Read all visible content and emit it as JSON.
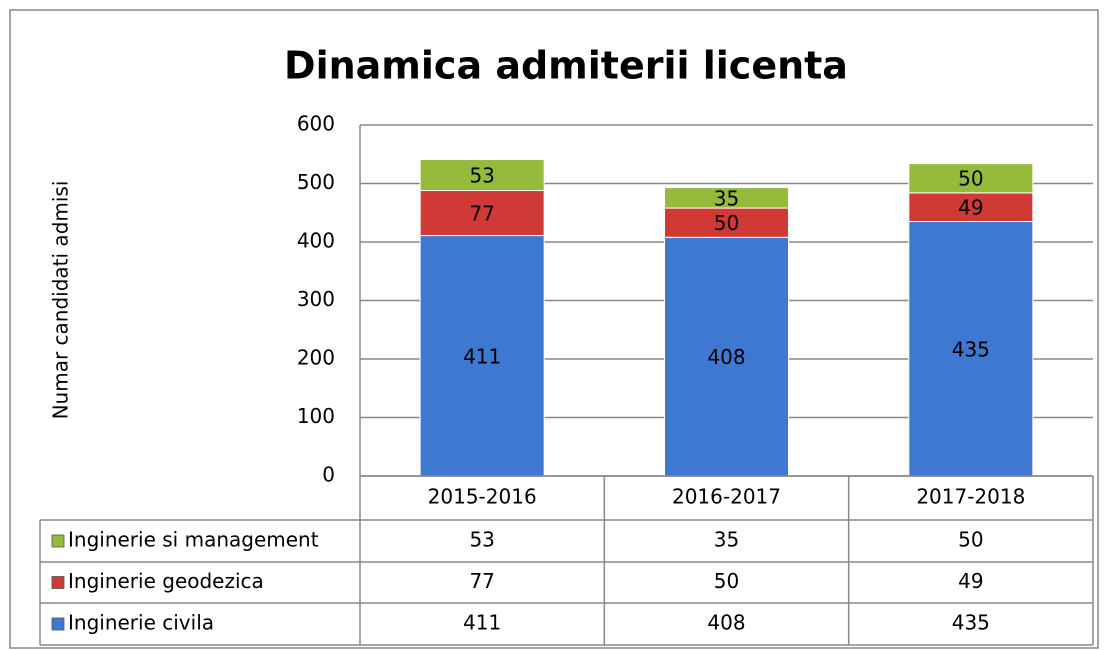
{
  "chart_data": {
    "type": "stacked_bar",
    "title": "Dinamica admiterii licenta",
    "y_label": "Numar candidati admisi",
    "categories": [
      "2015-2016",
      "2016-2017",
      "2017-2018"
    ],
    "series": [
      {
        "name": "Inginerie civila",
        "color": "#3f78d0",
        "values": [
          411,
          408,
          435
        ]
      },
      {
        "name": "Inginerie geodezica",
        "color": "#d03a36",
        "values": [
          77,
          50,
          49
        ]
      },
      {
        "name": "Inginerie si management",
        "color": "#95bb3c",
        "values": [
          53,
          35,
          50
        ]
      }
    ],
    "ylim": [
      0,
      600
    ],
    "yticks": [
      0,
      100,
      200,
      300,
      400,
      500,
      600
    ],
    "grid": true,
    "data_table": true
  }
}
